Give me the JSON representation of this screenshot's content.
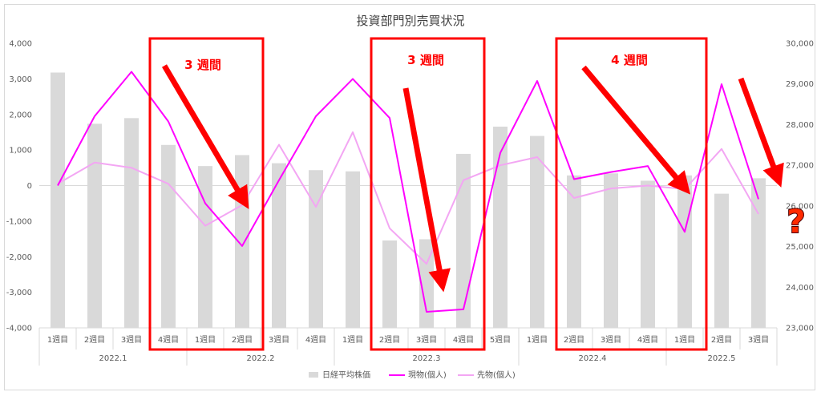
{
  "chart_data": {
    "type": "bar",
    "title": "投資部門別売買状況",
    "categories": [
      "1週目",
      "2週目",
      "3週目",
      "4週目",
      "1週目",
      "2週目",
      "3週目",
      "4週目",
      "1週目",
      "2週目",
      "3週目",
      "4週目",
      "5週目",
      "1週目",
      "2週目",
      "3週目",
      "4週目",
      "1週目",
      "2週目",
      "3週目"
    ],
    "months": [
      {
        "label": "2022.1",
        "count": 4
      },
      {
        "label": "2022.2",
        "count": 4
      },
      {
        "label": "2022.3",
        "count": 5
      },
      {
        "label": "2022.4",
        "count": 4
      },
      {
        "label": "2022.5",
        "count": 3
      }
    ],
    "series": [
      {
        "name": "日経平均株価",
        "type": "bar",
        "axis": "right",
        "color": "#d9d9d9",
        "values": [
          29280,
          28020,
          28160,
          27500,
          26980,
          27250,
          27050,
          26880,
          26850,
          25150,
          25180,
          27280,
          27950,
          27720,
          26750,
          26800,
          26620,
          26750,
          26300,
          26680
        ]
      },
      {
        "name": "現物(個人)",
        "type": "line",
        "axis": "left",
        "color": "#ff00ff",
        "values": [
          0,
          1950,
          3200,
          1800,
          -500,
          -1700,
          150,
          1950,
          3000,
          1900,
          -3550,
          -3480,
          920,
          2940,
          180,
          380,
          550,
          -1300,
          2850,
          -380
        ]
      },
      {
        "name": "先物(個人)",
        "type": "line",
        "axis": "left",
        "color": "#f3a6f3",
        "values": [
          50,
          650,
          500,
          50,
          -1130,
          -550,
          1150,
          -600,
          1500,
          -1200,
          -2200,
          150,
          570,
          800,
          -350,
          -80,
          0,
          -100,
          1030,
          -800
        ]
      }
    ],
    "y_left": {
      "min": -4000,
      "max": 4000,
      "step": 1000,
      "ticks": [
        "-4,000",
        "-3,000",
        "-2,000",
        "-1,000",
        "0",
        "1,000",
        "2,000",
        "3,000",
        "4,000"
      ]
    },
    "y_right": {
      "min": 23000,
      "max": 30000,
      "step": 1000,
      "ticks": [
        "23,000",
        "24,000",
        "25,000",
        "26,000",
        "27,000",
        "28,000",
        "29,000",
        "30,000"
      ]
    },
    "legend": "bottom",
    "grid": false
  },
  "annotations": {
    "box1_label": "3 週間",
    "box2_label": "3 週間",
    "box3_label": "4 週間",
    "question_mark": "?"
  }
}
